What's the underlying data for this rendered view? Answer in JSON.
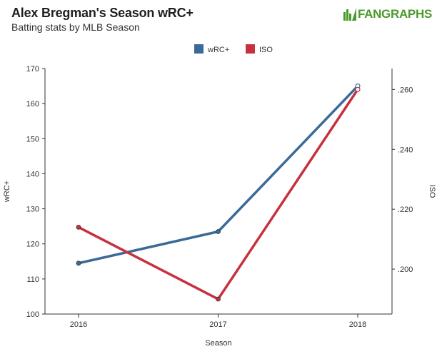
{
  "header": {
    "title": "Alex Bregman's Season wRC+",
    "subtitle": "Batting stats by MLB Season",
    "logo_text": "FANGRAPHS"
  },
  "chart_data": {
    "type": "line",
    "xlabel": "Season",
    "ylabel": "wRC+",
    "y2label": "ISO",
    "categories": [
      "2016",
      "2017",
      "2018"
    ],
    "ylim": [
      100,
      170
    ],
    "yticks": [
      "100",
      "110",
      "120",
      "130",
      "140",
      "150",
      "160",
      "170"
    ],
    "y2lim": [
      0.185,
      0.267
    ],
    "y2ticks": [
      {
        "value": 0.2,
        "label": ".200"
      },
      {
        "value": 0.22,
        "label": ".220"
      },
      {
        "value": 0.24,
        "label": ".240"
      },
      {
        "value": 0.26,
        "label": ".260"
      }
    ],
    "series": [
      {
        "name": "wRC+",
        "axis": "left",
        "color": "#3a6a97",
        "values": [
          114.5,
          123.5,
          165
        ]
      },
      {
        "name": "ISO",
        "axis": "right",
        "color": "#c7313f",
        "values": [
          0.214,
          0.19,
          0.26
        ]
      }
    ],
    "legend_position": "top-center"
  }
}
